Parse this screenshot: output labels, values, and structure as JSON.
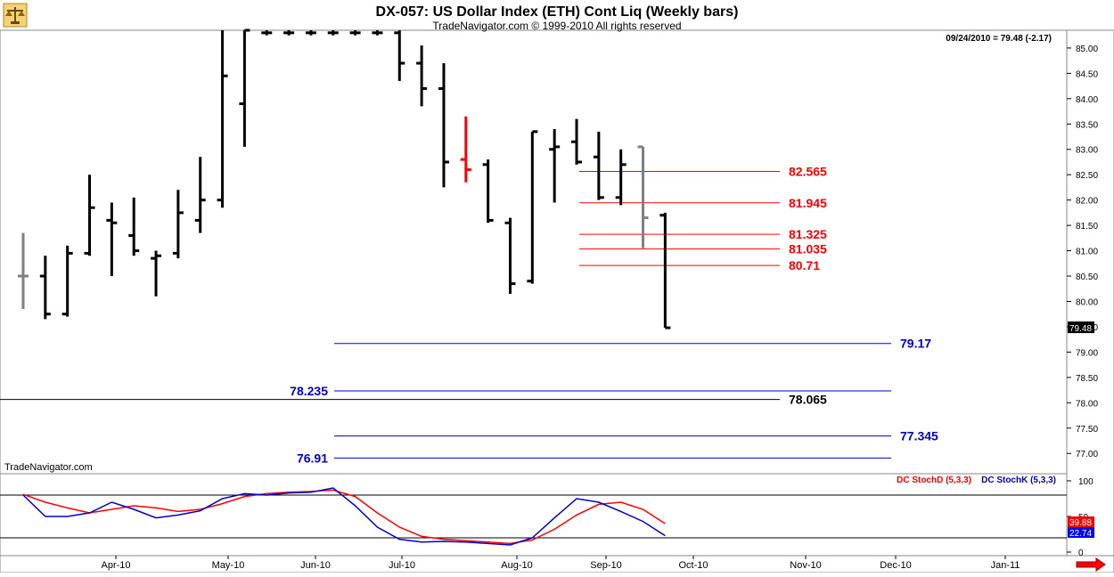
{
  "header": {
    "title": "DX-057:  US Dollar Index (ETH) Cont Liq  (Weekly bars)",
    "subtitle": "TradeNavigator.com © 1999-2010 All rights reserved",
    "last_quote": "09/24/2010 = 79.48 (-2.17)",
    "watermark": "TradeNavigator.com",
    "logo_icon": "scales-icon",
    "scroll_icon": "right-arrow-icon"
  },
  "colors": {
    "up_bar": "#000000",
    "highlight_bar": "#ff0000",
    "gray_bar": "#808080",
    "resistance": "#ff0000",
    "support": "#0000cc",
    "stochD": "#dd0000",
    "stochK": "#0000cc",
    "axis": "#000000"
  },
  "chart_data": [
    {
      "type": "bar",
      "subtype": "ohlc",
      "ylim": [
        76.6,
        85.35
      ],
      "y_ticks": [
        "85.00",
        "84.50",
        "84.00",
        "83.50",
        "83.00",
        "82.50",
        "82.00",
        "81.50",
        "81.00",
        "80.50",
        "80.00",
        "79.50",
        "79.00",
        "78.50",
        "78.00",
        "77.50",
        "77.00"
      ],
      "y_tick_values": [
        85.0,
        84.5,
        84.0,
        83.5,
        83.0,
        82.5,
        82.0,
        81.5,
        81.0,
        80.5,
        80.0,
        79.5,
        79.0,
        78.5,
        78.0,
        77.5,
        77.0
      ],
      "x_labels": [
        "Apr-10",
        "May-10",
        "Jun-10",
        "Jul-10",
        "Aug-10",
        "Sep-10",
        "Oct-10",
        "Nov-10",
        "Dec-10",
        "Jan-11"
      ],
      "last_value_label": "79.48",
      "bars": [
        {
          "o": 80.5,
          "h": 81.35,
          "l": 79.85,
          "c": 80.5,
          "color": "gray"
        },
        {
          "o": 80.5,
          "h": 80.9,
          "l": 79.65,
          "c": 79.75
        },
        {
          "o": 79.75,
          "h": 81.1,
          "l": 79.7,
          "c": 80.95
        },
        {
          "o": 80.95,
          "h": 82.5,
          "l": 80.9,
          "c": 81.85
        },
        {
          "o": 81.6,
          "h": 81.95,
          "l": 80.5,
          "c": 81.55
        },
        {
          "o": 81.3,
          "h": 82.05,
          "l": 80.9,
          "c": 81.0
        },
        {
          "o": 80.85,
          "h": 81.0,
          "l": 80.1,
          "c": 80.9
        },
        {
          "o": 80.95,
          "h": 82.2,
          "l": 80.85,
          "c": 81.75
        },
        {
          "o": 81.6,
          "h": 82.85,
          "l": 81.35,
          "c": 82.0
        },
        {
          "o": 82.0,
          "h": 85.35,
          "l": 81.85,
          "c": 84.45
        },
        {
          "o": 83.9,
          "h": 85.35,
          "l": 83.05,
          "c": 85.35
        },
        {
          "o": 85.3,
          "h": 85.35,
          "l": 85.25,
          "c": 85.3
        },
        {
          "o": 85.3,
          "h": 85.35,
          "l": 85.25,
          "c": 85.3
        },
        {
          "o": 85.3,
          "h": 85.35,
          "l": 85.25,
          "c": 85.3
        },
        {
          "o": 85.3,
          "h": 85.35,
          "l": 85.25,
          "c": 85.3
        },
        {
          "o": 85.3,
          "h": 85.35,
          "l": 85.25,
          "c": 85.3
        },
        {
          "o": 85.3,
          "h": 85.35,
          "l": 85.25,
          "c": 85.3
        },
        {
          "o": 85.3,
          "h": 85.35,
          "l": 84.35,
          "c": 84.7
        },
        {
          "o": 84.7,
          "h": 85.05,
          "l": 83.85,
          "c": 84.2
        },
        {
          "o": 84.2,
          "h": 84.7,
          "l": 82.25,
          "c": 82.75
        },
        {
          "o": 82.8,
          "h": 83.65,
          "l": 82.35,
          "c": 82.6,
          "color": "red"
        },
        {
          "o": 82.7,
          "h": 82.8,
          "l": 81.55,
          "c": 81.6
        },
        {
          "o": 81.55,
          "h": 81.65,
          "l": 80.15,
          "c": 80.35
        },
        {
          "o": 80.4,
          "h": 83.35,
          "l": 80.35,
          "c": 83.35
        },
        {
          "o": 83.0,
          "h": 83.4,
          "l": 81.95,
          "c": 83.05
        },
        {
          "o": 83.15,
          "h": 83.6,
          "l": 82.7,
          "c": 82.75
        },
        {
          "o": 82.85,
          "h": 83.35,
          "l": 82.0,
          "c": 82.05
        },
        {
          "o": 82.05,
          "h": 83.0,
          "l": 81.9,
          "c": 82.7
        },
        {
          "o": 83.05,
          "h": 83.05,
          "l": 81.05,
          "c": 81.65,
          "color": "gray"
        },
        {
          "o": 81.7,
          "h": 81.75,
          "l": 79.48,
          "c": 79.48
        }
      ],
      "levels": [
        {
          "value": 82.565,
          "label": "82.565",
          "color": "red",
          "x_from": "Sep-10",
          "label_side": "right"
        },
        {
          "value": 81.945,
          "label": "81.945",
          "color": "red",
          "x_from": "Sep-10",
          "label_side": "right"
        },
        {
          "value": 81.325,
          "label": "81.325",
          "color": "red",
          "x_from": "Sep-10",
          "label_side": "right"
        },
        {
          "value": 81.035,
          "label": "81.035",
          "color": "red",
          "x_from": "Sep-10",
          "label_side": "right"
        },
        {
          "value": 80.71,
          "label": "80.71",
          "color": "red",
          "x_from": "Sep-10",
          "label_side": "right"
        },
        {
          "value": 79.17,
          "label": "79.17",
          "color": "blue",
          "x_from": "Jun-10",
          "label_side": "right"
        },
        {
          "value": 78.235,
          "label": "78.235",
          "color": "blue",
          "x_from": "Jun-10",
          "label_side": "left"
        },
        {
          "value": 78.065,
          "label": "78.065",
          "color": "black",
          "x_from": "start",
          "label_side": "right"
        },
        {
          "value": 77.345,
          "label": "77.345",
          "color": "blue",
          "x_from": "Jun-10",
          "label_side": "right"
        },
        {
          "value": 76.91,
          "label": "76.91",
          "color": "blue",
          "x_from": "Jun-10",
          "label_side": "left"
        }
      ]
    },
    {
      "type": "line",
      "ylim": [
        -5,
        110
      ],
      "y_ticks": [
        "100",
        "50",
        "0"
      ],
      "y_tick_values": [
        100,
        50,
        0
      ],
      "hlines": [
        80,
        20
      ],
      "last_value_labels": [
        "39.88",
        "22.74"
      ],
      "series": [
        {
          "name": "DC StochD (5,3,3)",
          "color": "red",
          "values": [
            81,
            70,
            62,
            55,
            60,
            65,
            62,
            57,
            60,
            68,
            78,
            82,
            84,
            85,
            87,
            78,
            55,
            35,
            22,
            18,
            16,
            14,
            12,
            17,
            32,
            52,
            67,
            70,
            60,
            40
          ]
        },
        {
          "name": "DC StochK (5,3,3)",
          "color": "blue",
          "values": [
            80,
            50,
            50,
            55,
            70,
            60,
            48,
            52,
            58,
            75,
            82,
            80,
            83,
            84,
            90,
            65,
            35,
            18,
            14,
            15,
            14,
            12,
            10,
            20,
            48,
            75,
            70,
            57,
            43,
            23
          ]
        }
      ]
    }
  ]
}
